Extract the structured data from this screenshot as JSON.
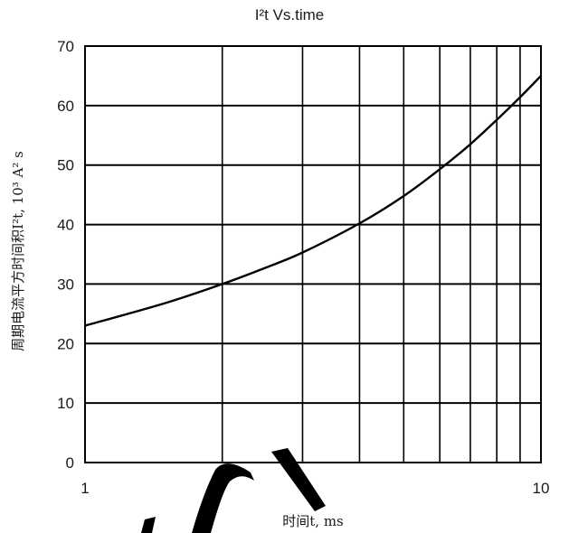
{
  "chart_data": {
    "type": "line",
    "title": "I²t  Vs.time",
    "xlabel": "时间t, ms",
    "ylabel": "周期电流平方时间积I²t, 10³ A² s",
    "x_scale": "log",
    "xlim": [
      1,
      10
    ],
    "ylim": [
      0,
      70
    ],
    "x_ticks": [
      1,
      10
    ],
    "x_tick_labels": [
      "1",
      "10"
    ],
    "x_minor_gridlines": [
      2,
      3,
      4,
      5,
      6,
      7,
      8,
      9
    ],
    "y_ticks": [
      0,
      10,
      20,
      30,
      40,
      50,
      60,
      70
    ],
    "y_tick_labels": [
      "0",
      "10",
      "20",
      "30",
      "40",
      "50",
      "60",
      "70"
    ],
    "grid": true,
    "line_color": "#000000",
    "x": [
      1,
      1.5,
      2,
      2.5,
      3,
      4,
      5,
      6,
      7,
      8,
      9,
      10
    ],
    "y": [
      23,
      26.8,
      30,
      32.8,
      35.3,
      40.2,
      44.8,
      49.3,
      53.5,
      57.6,
      61.4,
      65
    ]
  },
  "watermark": {
    "color": "#000000"
  }
}
